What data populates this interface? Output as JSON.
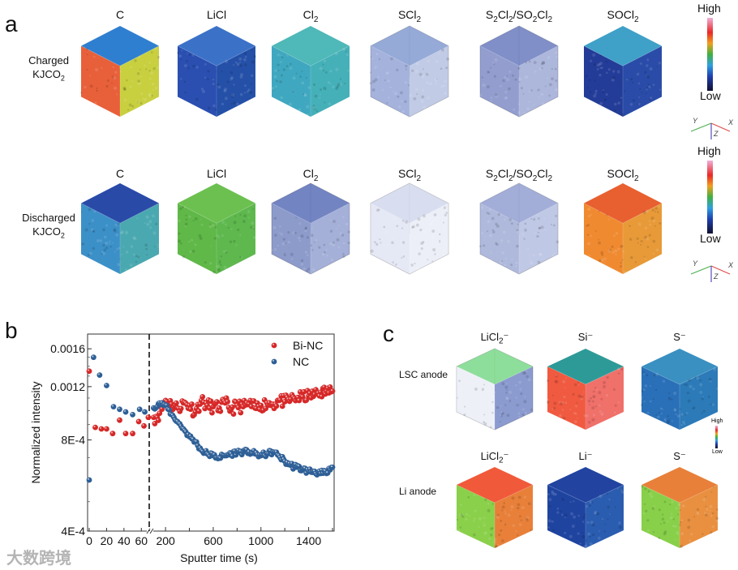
{
  "panel_a": {
    "label": "a",
    "rows": [
      {
        "row_label": [
          {
            "t": "Charged"
          },
          {
            "br": true
          },
          {
            "t": "KJCO"
          },
          {
            "sub": "2"
          }
        ],
        "cubes": [
          {
            "title": [
              {
                "t": "C"
              }
            ],
            "top": "#2f7fd0",
            "left": "#e8603a",
            "right": "#c8d040",
            "sparse": false
          },
          {
            "title": [
              {
                "t": "LiCl"
              }
            ],
            "top": "#3b72c8",
            "left": "#2a4fb0",
            "right": "#2550a8",
            "sparse": false
          },
          {
            "title": [
              {
                "t": "Cl"
              },
              {
                "sub": "2"
              }
            ],
            "top": "#4fb8b8",
            "left": "#3fa8c0",
            "right": "#45b0b8",
            "sparse": false
          },
          {
            "title": [
              {
                "t": "SCl"
              },
              {
                "sub": "2"
              }
            ],
            "top": "#6a86c8",
            "left": "#5a72c0",
            "right": "#8ea0d0",
            "sparse": true
          },
          {
            "title": [
              {
                "t": "S"
              },
              {
                "sub": "2"
              },
              {
                "t": "Cl"
              },
              {
                "sub": "2"
              },
              {
                "t": "/SO"
              },
              {
                "sub": "2"
              },
              {
                "t": "Cl"
              },
              {
                "sub": "2"
              }
            ],
            "top": "#4a60b0",
            "left": "#3a4ea8",
            "right": "#6a7cc0",
            "sparse": true
          },
          {
            "title": [
              {
                "t": "SOCl"
              },
              {
                "sub": "2"
              }
            ],
            "top": "#3fa0c8",
            "left": "#233c98",
            "right": "#2a4ca8",
            "sparse": false
          }
        ]
      },
      {
        "row_label": [
          {
            "t": "Discharged"
          },
          {
            "br": true
          },
          {
            "t": "KJCO"
          },
          {
            "sub": "2"
          }
        ],
        "cubes": [
          {
            "title": [
              {
                "t": "C"
              }
            ],
            "top": "#2a4aa8",
            "left": "#3c90c8",
            "right": "#4aa8b0",
            "sparse": false
          },
          {
            "title": [
              {
                "t": "LiCl"
              }
            ],
            "top": "#6cc050",
            "left": "#60b848",
            "right": "#5eb84e",
            "sparse": false
          },
          {
            "title": [
              {
                "t": "Cl"
              },
              {
                "sub": "2"
              }
            ],
            "top": "#3850a8",
            "left": "#3048a0",
            "right": "#5a70b8",
            "sparse": true
          },
          {
            "title": [
              {
                "t": "SCl"
              },
              {
                "sub": "2"
              }
            ],
            "top": "#c8d0e8",
            "left": "#d0d6ec",
            "right": "#dde2f0",
            "sparse": true
          },
          {
            "title": [
              {
                "t": "S"
              },
              {
                "sub": "2"
              },
              {
                "t": "Cl"
              },
              {
                "sub": "2"
              },
              {
                "t": "/SO"
              },
              {
                "sub": "2"
              },
              {
                "t": "Cl"
              },
              {
                "sub": "2"
              }
            ],
            "top": "#7a8cc8",
            "left": "#6e80c0",
            "right": "#8a9ad0",
            "sparse": true
          },
          {
            "title": [
              {
                "t": "SOCl"
              },
              {
                "sub": "2"
              }
            ],
            "top": "#e86030",
            "left": "#f08a30",
            "right": "#e89a38",
            "sparse": false
          }
        ]
      }
    ],
    "colorbar": {
      "high": "High",
      "low": "Low",
      "axes": [
        "Y",
        "Z",
        "X"
      ]
    }
  },
  "panel_b": {
    "label": "b"
  },
  "chart_data": {
    "type": "scatter",
    "xlabel": "Sputter time (s)",
    "ylabel": "Normalized intensity",
    "yscale": "log",
    "ylim": [
      0.0004,
      0.00179
    ],
    "yticks": [
      {
        "v": 0.0016,
        "label": "0.0016"
      },
      {
        "v": 0.0012,
        "label": "0.0012"
      },
      {
        "v": 0.0008,
        "label": "8E-4"
      },
      {
        "v": 0.0004,
        "label": "4E-4"
      }
    ],
    "x_break": true,
    "xlim_segment1": [
      0,
      70
    ],
    "xlim_segment2": [
      70,
      1600
    ],
    "xticks_segment1": [
      {
        "v": 0,
        "label": "0"
      },
      {
        "v": 20,
        "label": "20"
      },
      {
        "v": 40,
        "label": "40"
      },
      {
        "v": 60,
        "label": "60"
      }
    ],
    "xticks_segment2": [
      {
        "v": 200,
        "label": "200"
      },
      {
        "v": 600,
        "label": "600"
      },
      {
        "v": 1000,
        "label": "1000"
      },
      {
        "v": 1400,
        "label": "1400"
      }
    ],
    "dashed_line_x": 70,
    "legend_position": "top-right",
    "series": [
      {
        "name": "Bi-NC",
        "color": "#d62828",
        "segment1": [
          [
            0,
            0.00135
          ],
          [
            7,
            0.00088
          ],
          [
            14,
            0.00087
          ],
          [
            20,
            0.00087
          ],
          [
            27,
            0.00084
          ],
          [
            35,
            0.00093
          ],
          [
            42,
            0.00084
          ],
          [
            50,
            0.00084
          ],
          [
            57,
            0.00092
          ],
          [
            63,
            0.00089
          ],
          [
            68,
            0.00095
          ]
        ],
        "segment2": [
          [
            100,
            0.00095
          ],
          [
            150,
            0.00098
          ],
          [
            200,
            0.00108
          ],
          [
            250,
            0.00105
          ],
          [
            300,
            0.00102
          ],
          [
            350,
            0.00106
          ],
          [
            400,
            0.00104
          ],
          [
            450,
            0.00099
          ],
          [
            500,
            0.00108
          ],
          [
            550,
            0.00104
          ],
          [
            600,
            0.00103
          ],
          [
            650,
            0.00102
          ],
          [
            700,
            0.00106
          ],
          [
            750,
            0.00101
          ],
          [
            800,
            0.00104
          ],
          [
            850,
            0.00103
          ],
          [
            900,
            0.00105
          ],
          [
            950,
            0.00102
          ],
          [
            1000,
            0.00104
          ],
          [
            1050,
            0.00106
          ],
          [
            1100,
            0.00105
          ],
          [
            1150,
            0.00108
          ],
          [
            1200,
            0.00107
          ],
          [
            1250,
            0.00109
          ],
          [
            1300,
            0.0011
          ],
          [
            1350,
            0.00111
          ],
          [
            1400,
            0.00112
          ],
          [
            1450,
            0.00113
          ],
          [
            1500,
            0.00115
          ],
          [
            1550,
            0.00116
          ],
          [
            1600,
            0.00116
          ]
        ]
      },
      {
        "name": "NC",
        "color": "#2e5f96",
        "segment1": [
          [
            0,
            0.00059
          ],
          [
            5,
            0.0015
          ],
          [
            12,
            0.00131
          ],
          [
            20,
            0.00121
          ],
          [
            28,
            0.00103
          ],
          [
            35,
            0.00101
          ],
          [
            42,
            0.00099
          ],
          [
            50,
            0.00097
          ],
          [
            58,
            0.00101
          ],
          [
            64,
            0.00099
          ]
        ],
        "segment2": [
          [
            100,
            0.00102
          ],
          [
            150,
            0.00106
          ],
          [
            200,
            0.00104
          ],
          [
            250,
            0.00097
          ],
          [
            300,
            0.00092
          ],
          [
            350,
            0.00087
          ],
          [
            400,
            0.00082
          ],
          [
            450,
            0.00079
          ],
          [
            500,
            0.00074
          ],
          [
            550,
            0.00072
          ],
          [
            600,
            0.00071
          ],
          [
            650,
            0.0007
          ],
          [
            700,
            0.00071
          ],
          [
            750,
            0.00072
          ],
          [
            800,
            0.00073
          ],
          [
            850,
            0.00073
          ],
          [
            900,
            0.00073
          ],
          [
            950,
            0.00072
          ],
          [
            1000,
            0.00071
          ],
          [
            1050,
            0.00072
          ],
          [
            1100,
            0.00073
          ],
          [
            1150,
            0.00071
          ],
          [
            1200,
            0.00068
          ],
          [
            1250,
            0.00066
          ],
          [
            1300,
            0.00065
          ],
          [
            1350,
            0.00064
          ],
          [
            1400,
            0.00063
          ],
          [
            1450,
            0.00063
          ],
          [
            1500,
            0.00062
          ],
          [
            1550,
            0.00062
          ],
          [
            1600,
            0.00065
          ]
        ]
      }
    ]
  },
  "panel_c": {
    "label": "c",
    "rows": [
      {
        "row_label": "LSC anode",
        "cubes": [
          {
            "title": [
              {
                "t": "LiCl"
              },
              {
                "sub": "2"
              },
              {
                "t": "⁻"
              }
            ],
            "top": "#5ed070",
            "left": "#e0e4f2",
            "right": "#2c48a8",
            "sparse": true
          },
          {
            "title": [
              {
                "t": "Si⁻"
              }
            ],
            "top": "#2e9a98",
            "left": "#f05a40",
            "right": "#f0706a",
            "sparse": false
          },
          {
            "title": [
              {
                "t": "S⁻"
              }
            ],
            "top": "#3a90c0",
            "left": "#2a70b8",
            "right": "#2c7ab8",
            "sparse": false
          }
        ]
      },
      {
        "row_label": "Li anode",
        "cubes": [
          {
            "title": [
              {
                "t": "LiCl"
              },
              {
                "sub": "2"
              },
              {
                "t": "⁻"
              }
            ],
            "top": "#f05a3a",
            "left": "#8ad04a",
            "right": "#e8803a",
            "sparse": false
          },
          {
            "title": [
              {
                "t": "Li⁻"
              }
            ],
            "top": "#2244a0",
            "left": "#1f44a0",
            "right": "#2a5cb0",
            "sparse": false
          },
          {
            "title": [
              {
                "t": "S⁻"
              }
            ],
            "top": "#e8803a",
            "left": "#88d04a",
            "right": "#e89040",
            "sparse": false
          }
        ]
      }
    ],
    "colorbar": {
      "high": "High",
      "low": "Low"
    }
  },
  "watermark": "大数跨境"
}
